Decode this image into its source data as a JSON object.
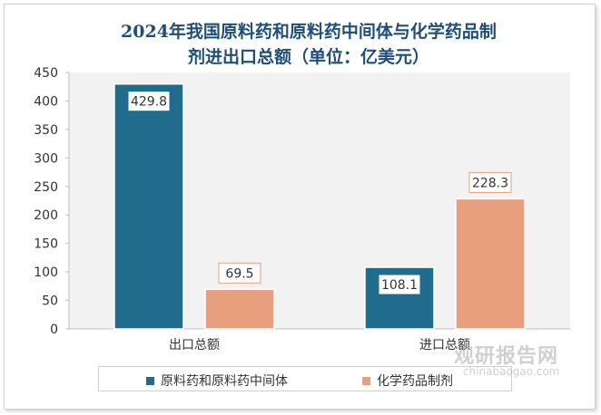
{
  "chart_data": {
    "type": "bar",
    "title_line1": "2024年我国原料药和原料药中间体与化学药品制",
    "title_line2": "剂进出口总额（单位：亿美元）",
    "categories": [
      "出口总额",
      "进口总额"
    ],
    "series": [
      {
        "name": "原料药和原料药中间体",
        "values": [
          429.8,
          108.1
        ],
        "color": "#1f6c8c"
      },
      {
        "name": "化学药品制剂",
        "values": [
          69.5,
          228.3
        ],
        "color": "#e89f7e"
      }
    ],
    "yticks": [
      "0",
      "50",
      "100",
      "150",
      "200",
      "250",
      "300",
      "350",
      "400",
      "450"
    ],
    "ylim": [
      0,
      450
    ],
    "xlabel": "",
    "ylabel": "",
    "legend_position": "bottom"
  },
  "watermark": {
    "logo_text": "观研报告网",
    "url_text": "chinabaogao.com"
  }
}
